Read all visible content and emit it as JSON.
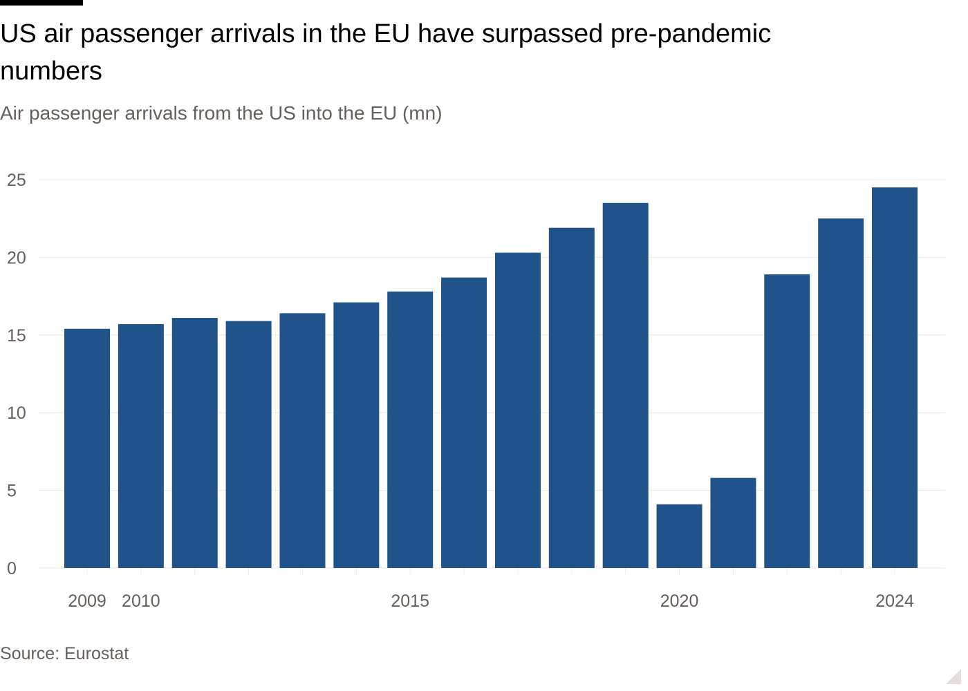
{
  "header": {
    "title": "US air passenger arrivals in the EU have surpassed pre-pandemic numbers",
    "subtitle": "Air passenger arrivals from the US into the EU (mn)"
  },
  "footer": {
    "source": "Source: Eurostat"
  },
  "colors": {
    "bar": "#1f538a",
    "grid": "#ebe8e5",
    "axis_text": "#66605c",
    "brand_bar": "#000000"
  },
  "chart_data": {
    "type": "bar",
    "title": "US air passenger arrivals in the EU have surpassed pre-pandemic numbers",
    "subtitle": "Air passenger arrivals from the US into the EU (mn)",
    "categories": [
      "2009",
      "2010",
      "2011",
      "2012",
      "2013",
      "2014",
      "2015",
      "2016",
      "2017",
      "2018",
      "2019",
      "2020",
      "2021",
      "2022",
      "2023",
      "2024"
    ],
    "values": [
      15.4,
      15.7,
      16.1,
      15.9,
      16.4,
      17.1,
      17.8,
      18.7,
      20.3,
      21.9,
      23.5,
      4.1,
      5.8,
      18.9,
      22.5,
      24.5
    ],
    "ylim": [
      0,
      25
    ],
    "yticks": [
      0,
      5,
      10,
      15,
      20,
      25
    ],
    "xtick_labels": [
      "2009",
      "2010",
      "2015",
      "2020",
      "2024"
    ],
    "xlabel": "",
    "ylabel": "",
    "grid": true,
    "legend": "none"
  }
}
